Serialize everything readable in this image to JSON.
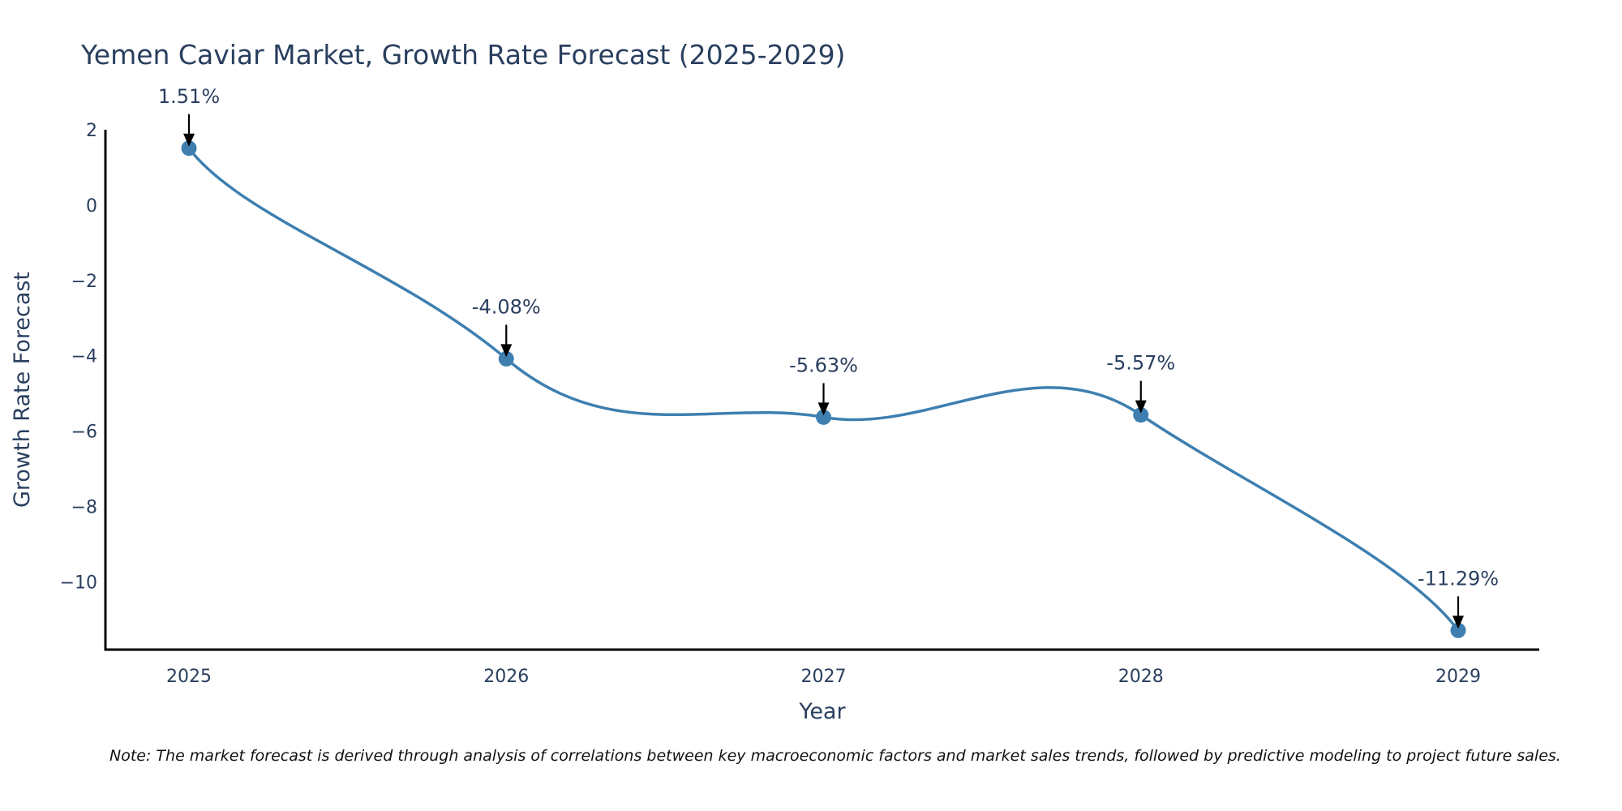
{
  "chart_data": {
    "type": "line",
    "title": "Yemen Caviar Market, Growth Rate Forecast (2025-2029)",
    "xlabel": "Year",
    "ylabel": "Growth Rate Forecast",
    "categories": [
      "2025",
      "2026",
      "2027",
      "2028",
      "2029"
    ],
    "series": [
      {
        "name": "Growth Rate Forecast",
        "values": [
          1.51,
          -4.08,
          -5.63,
          -5.57,
          -11.29
        ],
        "color": "#3e7fb0",
        "line_shape": "spline",
        "markers": true
      }
    ],
    "annotations": [
      "1.51%",
      "-4.08%",
      "-5.63%",
      "-5.57%",
      "-11.29%"
    ],
    "yticks": [
      2,
      0,
      -2,
      -4,
      -6,
      -8,
      -10
    ],
    "ytick_labels": [
      "2",
      "0",
      "−2",
      "−4",
      "−6",
      "−8",
      "−10"
    ],
    "ylim": [
      -11.8,
      2
    ],
    "grid": false,
    "legend": "none",
    "note": "Note: The market forecast is derived through analysis of correlations between key macroeconomic factors and market sales trends, followed by predictive modeling to project future sales."
  }
}
